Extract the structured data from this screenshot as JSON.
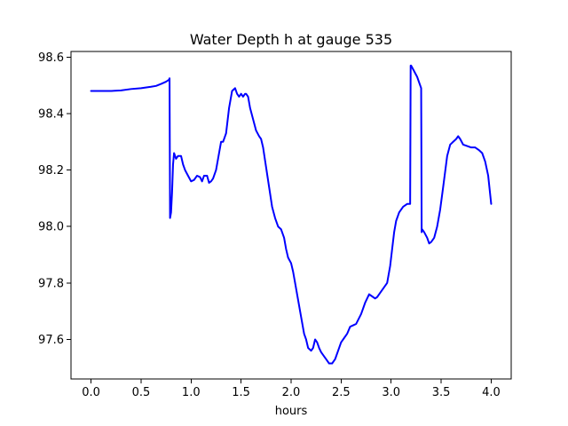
{
  "chart_data": {
    "type": "line",
    "title": "Water Depth h at gauge 535",
    "xlabel": "hours",
    "ylabel": "",
    "xlim": [
      -0.2,
      4.2
    ],
    "ylim": [
      97.46,
      98.62
    ],
    "xticks": [
      0.0,
      0.5,
      1.0,
      1.5,
      2.0,
      2.5,
      3.0,
      3.5,
      4.0
    ],
    "xtick_labels": [
      "0.0",
      "0.5",
      "1.0",
      "1.5",
      "2.0",
      "2.5",
      "3.0",
      "3.5",
      "4.0"
    ],
    "yticks": [
      97.6,
      97.8,
      98.0,
      98.2,
      98.4,
      98.6
    ],
    "ytick_labels": [
      "97.6",
      "97.8",
      "98.0",
      "98.2",
      "98.4",
      "98.6"
    ],
    "grid": false,
    "legend": "none",
    "series": [
      {
        "color": "#0000ff",
        "x": [
          0.0,
          0.2,
          0.3,
          0.4,
          0.5,
          0.6,
          0.65,
          0.7,
          0.75,
          0.78,
          0.785,
          0.79,
          0.8,
          0.81,
          0.82,
          0.83,
          0.85,
          0.87,
          0.9,
          0.92,
          0.94,
          0.97,
          1.0,
          1.03,
          1.06,
          1.09,
          1.11,
          1.13,
          1.16,
          1.18,
          1.2,
          1.22,
          1.25,
          1.27,
          1.3,
          1.32,
          1.35,
          1.38,
          1.41,
          1.44,
          1.46,
          1.48,
          1.5,
          1.52,
          1.54,
          1.55,
          1.57,
          1.59,
          1.62,
          1.65,
          1.68,
          1.7,
          1.72,
          1.75,
          1.78,
          1.81,
          1.84,
          1.87,
          1.9,
          1.93,
          1.95,
          1.97,
          2.0,
          2.02,
          2.04,
          2.07,
          2.1,
          2.13,
          2.15,
          2.17,
          2.2,
          2.22,
          2.24,
          2.26,
          2.28,
          2.3,
          2.33,
          2.35,
          2.38,
          2.41,
          2.44,
          2.47,
          2.5,
          2.53,
          2.56,
          2.59,
          2.62,
          2.65,
          2.7,
          2.74,
          2.78,
          2.82,
          2.84,
          2.86,
          2.88,
          2.92,
          2.96,
          2.99,
          3.01,
          3.03,
          3.05,
          3.08,
          3.12,
          3.16,
          3.19,
          3.195,
          3.2,
          3.23,
          3.26,
          3.28,
          3.3,
          3.305,
          3.31,
          3.33,
          3.36,
          3.38,
          3.4,
          3.43,
          3.46,
          3.49,
          3.52,
          3.56,
          3.59,
          3.62,
          3.65,
          3.67,
          3.69,
          3.72,
          3.76,
          3.8,
          3.84,
          3.88,
          3.91,
          3.94,
          3.97,
          4.0
        ],
        "y": [
          98.48,
          98.48,
          98.482,
          98.487,
          98.49,
          98.495,
          98.498,
          98.505,
          98.513,
          98.52,
          98.525,
          98.03,
          98.05,
          98.12,
          98.22,
          98.26,
          98.24,
          98.25,
          98.25,
          98.22,
          98.2,
          98.18,
          98.16,
          98.165,
          98.18,
          98.175,
          98.16,
          98.18,
          98.18,
          98.155,
          98.16,
          98.17,
          98.2,
          98.24,
          98.3,
          98.3,
          98.33,
          98.42,
          98.48,
          98.49,
          98.47,
          98.46,
          98.47,
          98.46,
          98.47,
          98.47,
          98.46,
          98.42,
          98.38,
          98.34,
          98.32,
          98.31,
          98.28,
          98.21,
          98.14,
          98.07,
          98.03,
          98.0,
          97.99,
          97.96,
          97.92,
          97.89,
          97.87,
          97.84,
          97.8,
          97.74,
          97.68,
          97.62,
          97.6,
          97.57,
          97.56,
          97.57,
          97.6,
          97.59,
          97.57,
          97.555,
          97.54,
          97.53,
          97.515,
          97.515,
          97.53,
          97.56,
          97.59,
          97.605,
          97.62,
          97.645,
          97.65,
          97.655,
          97.69,
          97.73,
          97.76,
          97.75,
          97.745,
          97.75,
          97.76,
          97.78,
          97.8,
          97.86,
          97.92,
          97.98,
          98.02,
          98.05,
          98.07,
          98.08,
          98.08,
          98.57,
          98.57,
          98.55,
          98.53,
          98.51,
          98.49,
          97.98,
          97.99,
          97.98,
          97.96,
          97.94,
          97.945,
          97.96,
          98.0,
          98.06,
          98.14,
          98.25,
          98.29,
          98.3,
          98.31,
          98.32,
          98.31,
          98.29,
          98.285,
          98.28,
          98.28,
          98.27,
          98.26,
          98.23,
          98.18,
          98.08
        ]
      }
    ]
  }
}
